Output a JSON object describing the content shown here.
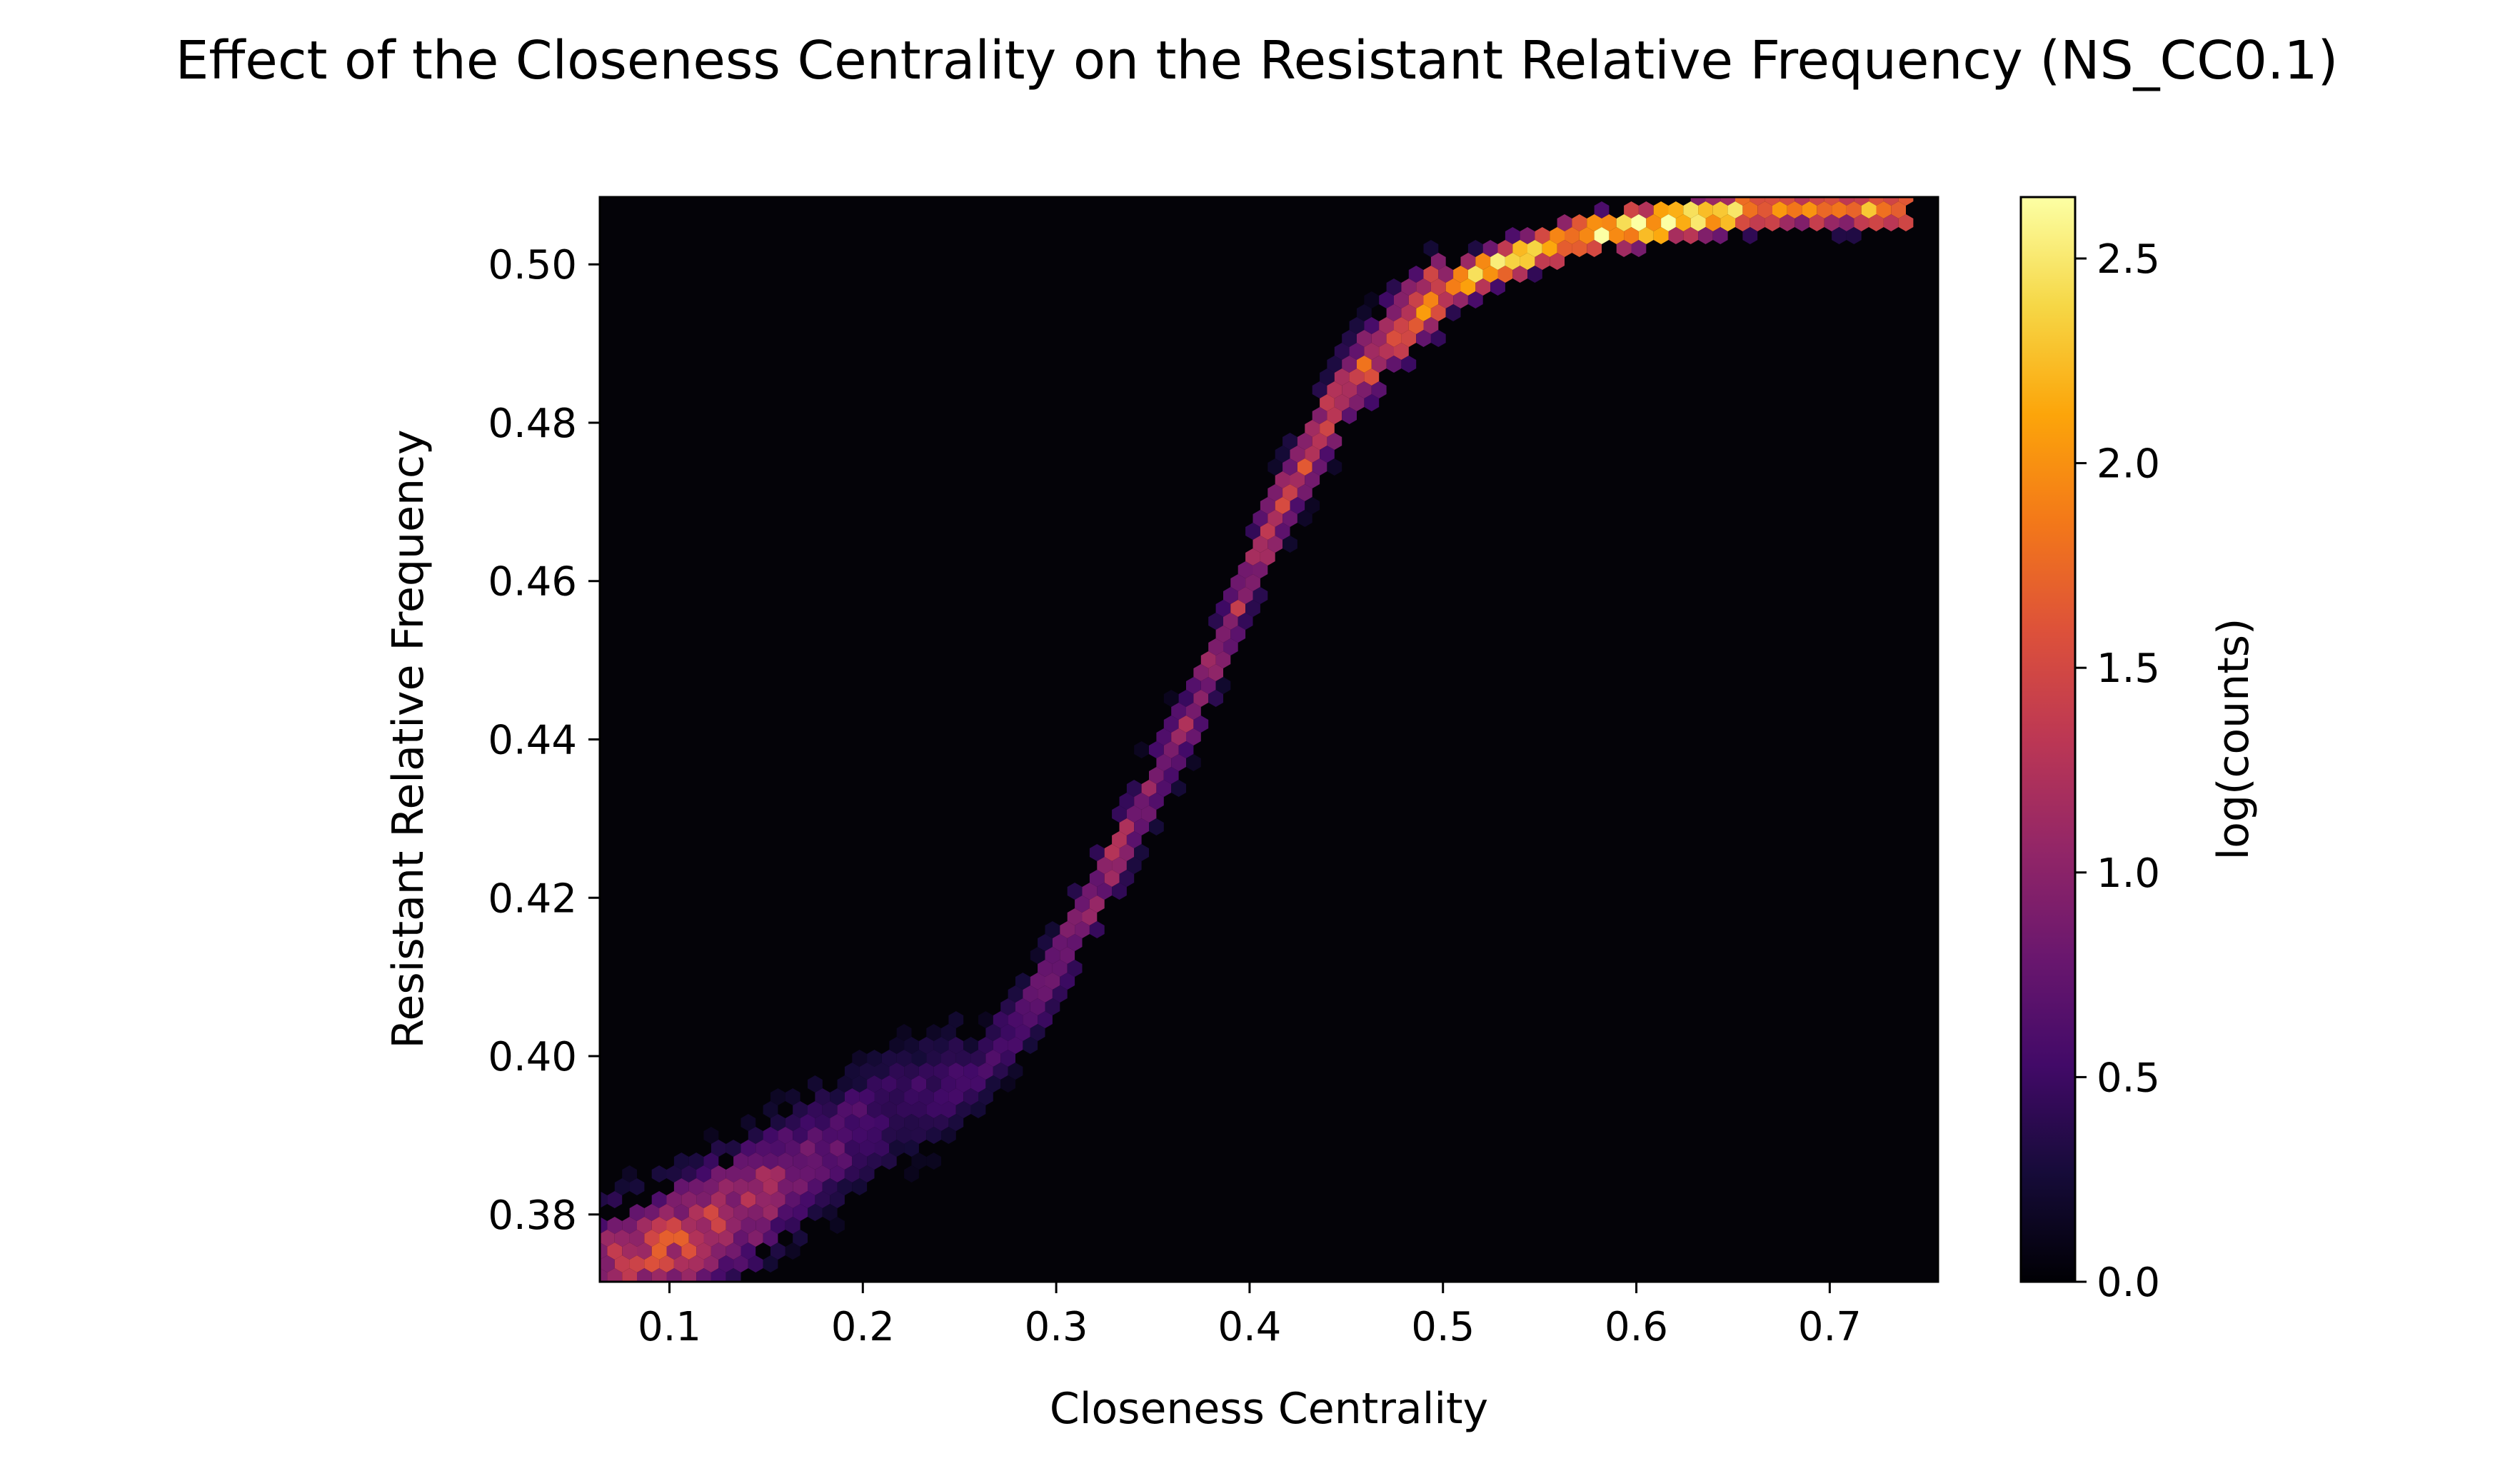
{
  "chart_data": {
    "type": "heatmap",
    "subtype": "hexbin",
    "title": "Effect of the Closeness Centrality on the Resistant Relative Frequency (NS_CC0.1)",
    "xlabel": "Closeness Centrality",
    "ylabel": "Resistant Relative Frequency",
    "xlim": [
      0.064,
      0.756
    ],
    "ylim": [
      0.3715,
      0.5085
    ],
    "xticks": [
      0.1,
      0.2,
      0.3,
      0.4,
      0.5,
      0.6,
      0.7
    ],
    "xtick_labels": [
      "0.1",
      "0.2",
      "0.3",
      "0.4",
      "0.5",
      "0.6",
      "0.7"
    ],
    "yticks": [
      0.38,
      0.4,
      0.42,
      0.44,
      0.46,
      0.48,
      0.5
    ],
    "ytick_labels": [
      "0.38",
      "0.40",
      "0.42",
      "0.44",
      "0.46",
      "0.48",
      "0.50"
    ],
    "background_color": "#040308",
    "grid": false,
    "colormap": "inferno",
    "colorbar": {
      "label": "log(counts)",
      "range": [
        0.0,
        2.65
      ],
      "ticks": [
        0.0,
        0.5,
        1.0,
        1.5,
        2.0,
        2.5
      ],
      "tick_labels": [
        "0.0",
        "0.5",
        "1.0",
        "1.5",
        "2.0",
        "2.5"
      ]
    },
    "density_trend": {
      "description_points_x": [
        0.07,
        0.1,
        0.14,
        0.18,
        0.22,
        0.26,
        0.29,
        0.31,
        0.33,
        0.35,
        0.37,
        0.39,
        0.41,
        0.43,
        0.45,
        0.47,
        0.49,
        0.52,
        0.55,
        0.58,
        0.62,
        0.66,
        0.69
      ],
      "description_points_y": [
        0.373,
        0.376,
        0.381,
        0.388,
        0.394,
        0.398,
        0.407,
        0.416,
        0.425,
        0.434,
        0.443,
        0.455,
        0.466,
        0.476,
        0.484,
        0.49,
        0.495,
        0.499,
        0.502,
        0.504,
        0.5055,
        0.507,
        0.507
      ],
      "description_peak_log_counts": [
        1.2,
        1.4,
        1.2,
        0.7,
        0.5,
        0.5,
        0.8,
        1.0,
        1.1,
        1.0,
        1.0,
        1.1,
        1.3,
        1.4,
        1.5,
        1.6,
        1.8,
        2.1,
        2.3,
        2.5,
        2.6,
        2.2,
        1.9
      ]
    }
  }
}
